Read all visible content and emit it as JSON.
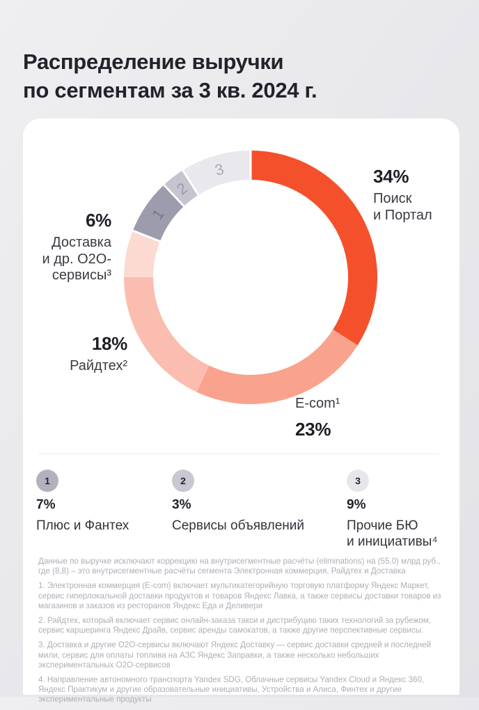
{
  "page": {
    "title": "Распределение выручки\nпо сегментам за 3 кв. 2024 г."
  },
  "chart_data": {
    "type": "pie",
    "donut": true,
    "title": "Распределение выручки по сегментам за 3 кв. 2024 г.",
    "start_angle_deg": 0,
    "direction": "clockwise",
    "inner_radius_ratio": 0.77,
    "segments": [
      {
        "label": "Поиск и Портал",
        "value": 34,
        "color": "#F4502B",
        "gap_before": true
      },
      {
        "label": "E-com",
        "value": 23,
        "color": "#F9A28D"
      },
      {
        "label": "Райдтех",
        "value": 18,
        "color": "#FBBDB0"
      },
      {
        "label": "Доставка и др. O2O-сервисы",
        "value": 6,
        "color": "#FCDAD2"
      },
      {
        "label": "Плюс и Фантех",
        "value": 7,
        "color": "#9D9CAD",
        "gap_before": true,
        "marker": "1",
        "marker_color": "#787789"
      },
      {
        "label": "Сервисы объявлений",
        "value": 3,
        "color": "#C5C4CF",
        "gap_before": true,
        "marker": "2",
        "marker_color": "#9B9AA9"
      },
      {
        "label": "Прочие БЮ и инициативы",
        "value": 9,
        "color": "#E9E8ED",
        "gap_before": true,
        "marker": "3",
        "marker_color": "#ABAAB7"
      }
    ]
  },
  "callouts": {
    "search": {
      "pct": "34%",
      "name": "Поиск\nи Портал"
    },
    "delivery": {
      "pct": "6%",
      "name": "Доставка\nи др. O2O-\nсервисы³"
    },
    "ridetech": {
      "pct": "18%",
      "name": "Райдтех²"
    },
    "ecom": {
      "pct": "23%",
      "name": "E-com¹"
    }
  },
  "legend": [
    {
      "num": "1",
      "pct": "7%",
      "label": "Плюс и Фантех",
      "circle_color": "#B2B1C0"
    },
    {
      "num": "2",
      "pct": "3%",
      "label": "Сервисы объявлений",
      "circle_color": "#C8C7D2"
    },
    {
      "num": "3",
      "pct": "9%",
      "label": "Прочие БЮ\nи инициативы⁴",
      "circle_color": "#E7E6EB"
    }
  ],
  "footnotes": [
    "Данные по выручке исключают коррекцию на внутрисегментные расчёты (eliminations) на (55,0) млрд руб., где (8,8) – это внутрисегментные расчёты сегмента Электронная коммерция, Райдтех и Доставка",
    "1. Электронная коммерция (E-com) включает мультикатегорийную торговую платформу Яндекс Маркет, сервис гиперлокальной доставки продуктов и товаров Яндекс Лавка, а также сервисы доставки товаров из магазинов и заказов из ресторанов Яндекс Еда и Деливери",
    "2. Райдтех, который включает сервис онлайн-заказа такси и дистрибуцию таких технологий за рубежом, сервис каршеринга Яндекс Драйв, сервис аренды самокатов, а также другие перспективные сервисы.",
    "3. Доставка и другие O2O-сервисы включают Яндекс Доставку — сервис доставки средней и последней мили, сервис для оплаты топлива на АЗС Яндекс Заправки, а также несколько небольших экспериментальных O2O-сервисов",
    "4. Направление автономного транспорта Yandex SDG, Облачные сервисы Yandex Cloud и Яндекс 360, Яндекс Практикум и другие образовательные инициативы, Устройства и Алиса, Финтех и другие экспериментальные продукты"
  ]
}
